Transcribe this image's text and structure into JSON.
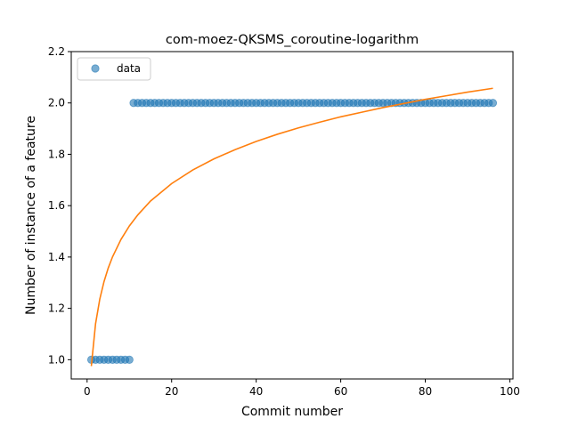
{
  "chart_data": {
    "type": "scatter",
    "title": "com-moez-QKSMS_coroutine-logarithm",
    "xlabel": "Commit number",
    "ylabel": "Number of instance of a feature",
    "xlim": [
      -3.75,
      100.75
    ],
    "ylim": [
      0.925,
      2.2
    ],
    "xticks": [
      0,
      20,
      40,
      60,
      80,
      100
    ],
    "yticks": [
      1.0,
      1.2,
      1.4,
      1.6,
      1.8,
      2.0,
      2.2
    ],
    "grid": false,
    "legend": {
      "placement": "top-left",
      "entries": [
        "data"
      ]
    },
    "series": [
      {
        "name": "data",
        "kind": "scatter",
        "color": "#1f77b4",
        "alpha": 0.6,
        "x": [
          1,
          2,
          3,
          4,
          5,
          6,
          7,
          8,
          9,
          10,
          11,
          12,
          13,
          14,
          15,
          16,
          17,
          18,
          19,
          20,
          21,
          22,
          23,
          24,
          25,
          26,
          27,
          28,
          29,
          30,
          31,
          32,
          33,
          34,
          35,
          36,
          37,
          38,
          39,
          40,
          41,
          42,
          43,
          44,
          45,
          46,
          47,
          48,
          49,
          50,
          51,
          52,
          53,
          54,
          55,
          56,
          57,
          58,
          59,
          60,
          61,
          62,
          63,
          64,
          65,
          66,
          67,
          68,
          69,
          70,
          71,
          72,
          73,
          74,
          75,
          76,
          77,
          78,
          79,
          80,
          81,
          82,
          83,
          84,
          85,
          86,
          87,
          88,
          89,
          90,
          91,
          92,
          93,
          94,
          95,
          96
        ],
        "y": [
          1,
          1,
          1,
          1,
          1,
          1,
          1,
          1,
          1,
          1,
          2,
          2,
          2,
          2,
          2,
          2,
          2,
          2,
          2,
          2,
          2,
          2,
          2,
          2,
          2,
          2,
          2,
          2,
          2,
          2,
          2,
          2,
          2,
          2,
          2,
          2,
          2,
          2,
          2,
          2,
          2,
          2,
          2,
          2,
          2,
          2,
          2,
          2,
          2,
          2,
          2,
          2,
          2,
          2,
          2,
          2,
          2,
          2,
          2,
          2,
          2,
          2,
          2,
          2,
          2,
          2,
          2,
          2,
          2,
          2,
          2,
          2,
          2,
          2,
          2,
          2,
          2,
          2,
          2,
          2,
          2,
          2,
          2,
          2,
          2,
          2,
          2,
          2,
          2,
          2,
          2,
          2,
          2,
          2,
          2,
          2
        ]
      },
      {
        "kind": "line",
        "color": "#ff7f0e",
        "x": [
          1,
          2,
          3,
          4,
          5,
          6,
          8,
          10,
          12,
          15,
          20,
          25,
          30,
          35,
          40,
          45,
          50,
          55,
          60,
          65,
          70,
          75,
          80,
          85,
          90,
          96
        ],
        "y": [
          0.975,
          1.14,
          1.236,
          1.304,
          1.357,
          1.4,
          1.468,
          1.521,
          1.564,
          1.618,
          1.686,
          1.739,
          1.782,
          1.818,
          1.85,
          1.878,
          1.903,
          1.925,
          1.946,
          1.964,
          1.982,
          1.998,
          2.014,
          2.028,
          2.042,
          2.057
        ]
      }
    ]
  }
}
